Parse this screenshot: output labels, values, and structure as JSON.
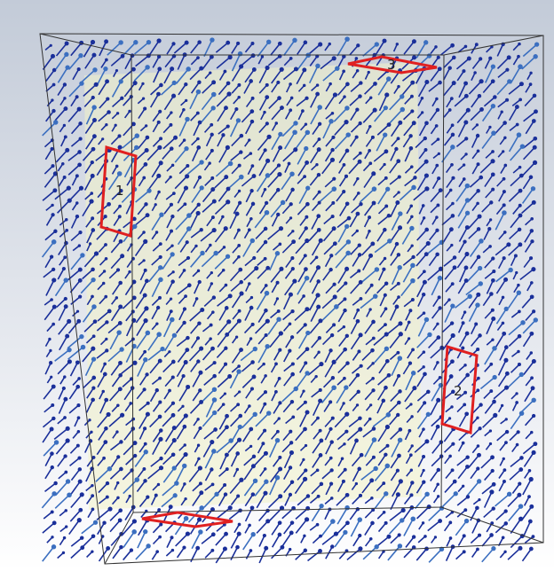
{
  "ports": [
    {
      "label": "1"
    },
    {
      "label": "2"
    },
    {
      "label": "3"
    }
  ]
}
